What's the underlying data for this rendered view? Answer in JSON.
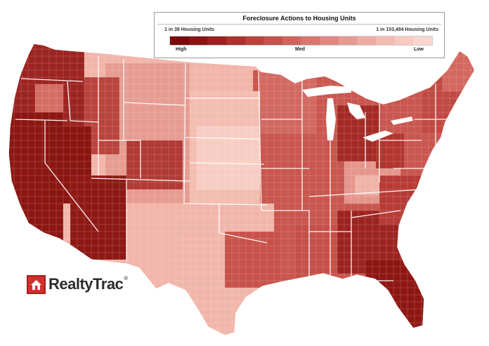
{
  "legend": {
    "title": "Foreclosure Actions to Housing Units",
    "left_extreme": "1 in 39 Housing Units",
    "right_extreme": "1 in 103,484 Housing Units",
    "tick_high": "High",
    "tick_med": "Med",
    "tick_low": "Low",
    "scale_colors": [
      "#7a0a0a",
      "#8b1414",
      "#9c2120",
      "#ac302d",
      "#ba413c",
      "#c6524c",
      "#d0645d",
      "#d8766e",
      "#e08880",
      "#e79a91",
      "#eeaba2",
      "#f3bbb2",
      "#f7cac1",
      "#fad6ce"
    ]
  },
  "brand": {
    "name": "RealtyTrac",
    "registered": "®",
    "mark_color": "#d2302c"
  },
  "map": {
    "subject": "Contiguous United States counties shaded by foreclosure rate",
    "regional_levels": {
      "west_coast": "High",
      "nevada_arizona": "High",
      "florida": "High",
      "great_lakes": "Med",
      "great_plains": "Low",
      "texas": "Low",
      "southeast": "Med",
      "northeast": "Med"
    }
  }
}
